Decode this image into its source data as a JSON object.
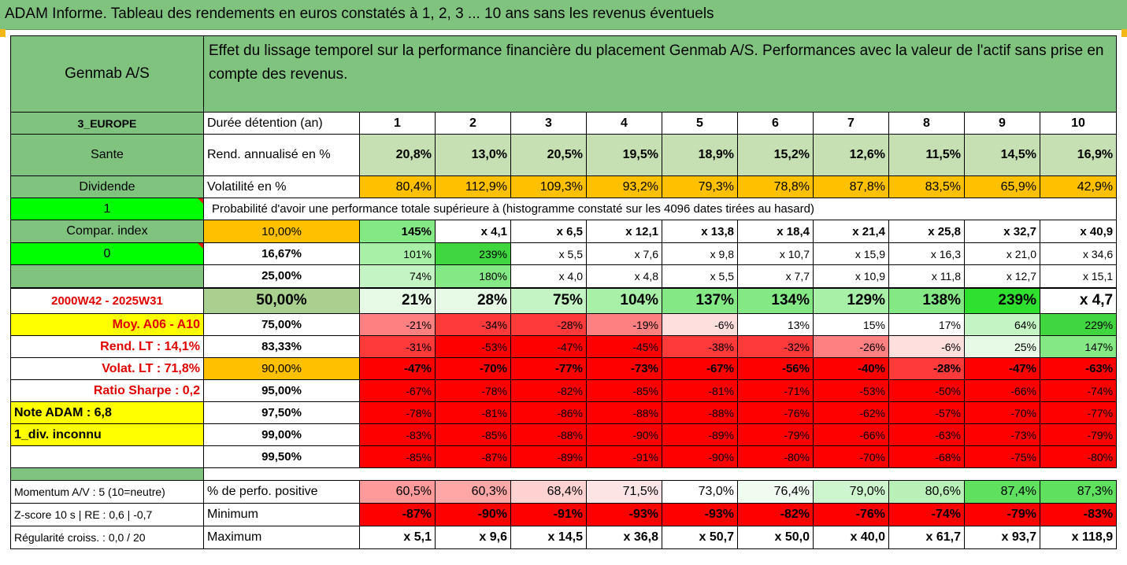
{
  "title": "ADAM Informe. Tableau des rendements en euros constatés à 1, 2, 3 ... 10 ans sans les revenus éventuels",
  "colors": {
    "green_header": "#80c37f",
    "bright_green": "#00ff00",
    "yellow": "#ffff00",
    "orange": "#ffc000",
    "red": "#ff0000"
  },
  "header": {
    "company": "Genmab A/S",
    "description": "Effet du lissage temporel sur la performance financière du placement Genmab A/S. Performances avec la valeur de l'actif sans prise en compte des revenus."
  },
  "left": {
    "region": "3_EUROPE",
    "sector": "Sante",
    "dividend_label": "Dividende",
    "dividend_value": "1",
    "compar_label": "Compar. index",
    "compar_value": "0",
    "period": "2000W42 - 2025W31",
    "moy": "Moy. A06 - A10",
    "rend_lt": "Rend. LT :   14,1%",
    "volat_lt": "Volat. LT :   71,8%",
    "sharpe": "Ratio Sharpe :    0,2",
    "note": "Note ADAM : 6,8",
    "div": "1_div. inconnu",
    "momentum": "Momentum A/V : 5 (10=neutre)",
    "zscore": "Z-score 10 s  | RE : 0,6 | -0,7",
    "regularite": "Régularité croiss. : 0,0 / 20"
  },
  "labels": {
    "duree": "Durée détention (an)",
    "rend": "Rend. annualisé en %",
    "volat": "Volatilité en %",
    "proba": "Probabilité d'avoir une performance totale supérieure à (histogramme constaté sur les 4096 dates tirées au hasard)",
    "perf_pos": "% de perfo. positive",
    "minimum": "Minimum",
    "maximum": "Maximum"
  },
  "years": [
    "1",
    "2",
    "3",
    "4",
    "5",
    "6",
    "7",
    "8",
    "9",
    "10"
  ],
  "rend": [
    "20,8%",
    "13,0%",
    "20,5%",
    "19,5%",
    "18,9%",
    "15,2%",
    "12,6%",
    "11,5%",
    "14,5%",
    "16,9%"
  ],
  "volat": [
    "80,4%",
    "112,9%",
    "109,3%",
    "93,2%",
    "79,3%",
    "78,8%",
    "87,8%",
    "83,5%",
    "65,9%",
    "42,9%"
  ],
  "percentile_rows": [
    {
      "p": "10,00%",
      "v": [
        "145%",
        "x 4,1",
        "x 6,5",
        "x 12,1",
        "x 13,8",
        "x 18,4",
        "x 21,4",
        "x 25,8",
        "x 32,7",
        "x 40,9"
      ]
    },
    {
      "p": "16,67%",
      "v": [
        "101%",
        "239%",
        "x 5,5",
        "x 7,6",
        "x 9,8",
        "x 10,7",
        "x 15,9",
        "x 16,3",
        "x 21,0",
        "x 34,6"
      ]
    },
    {
      "p": "25,00%",
      "v": [
        "74%",
        "180%",
        "x 4,0",
        "x 4,8",
        "x 5,5",
        "x 7,7",
        "x 10,9",
        "x 11,8",
        "x 12,7",
        "x 15,1"
      ]
    },
    {
      "p": "50,00%",
      "v": [
        "21%",
        "28%",
        "75%",
        "104%",
        "137%",
        "134%",
        "129%",
        "138%",
        "239%",
        "x 4,7"
      ]
    },
    {
      "p": "75,00%",
      "v": [
        "-21%",
        "-34%",
        "-28%",
        "-19%",
        "-6%",
        "13%",
        "15%",
        "17%",
        "64%",
        "229%"
      ]
    },
    {
      "p": "83,33%",
      "v": [
        "-31%",
        "-53%",
        "-47%",
        "-45%",
        "-38%",
        "-32%",
        "-26%",
        "-6%",
        "25%",
        "147%"
      ]
    },
    {
      "p": "90,00%",
      "v": [
        "-47%",
        "-70%",
        "-77%",
        "-73%",
        "-67%",
        "-56%",
        "-40%",
        "-28%",
        "-47%",
        "-63%"
      ]
    },
    {
      "p": "95,00%",
      "v": [
        "-67%",
        "-78%",
        "-82%",
        "-85%",
        "-81%",
        "-71%",
        "-53%",
        "-50%",
        "-66%",
        "-74%"
      ]
    },
    {
      "p": "97,50%",
      "v": [
        "-78%",
        "-81%",
        "-86%",
        "-88%",
        "-88%",
        "-76%",
        "-62%",
        "-57%",
        "-70%",
        "-77%"
      ]
    },
    {
      "p": "99,00%",
      "v": [
        "-83%",
        "-85%",
        "-88%",
        "-90%",
        "-89%",
        "-79%",
        "-66%",
        "-63%",
        "-73%",
        "-79%"
      ]
    },
    {
      "p": "99,50%",
      "v": [
        "-85%",
        "-87%",
        "-89%",
        "-91%",
        "-90%",
        "-80%",
        "-70%",
        "-68%",
        "-75%",
        "-80%"
      ]
    }
  ],
  "perf_pos": [
    "60,5%",
    "60,3%",
    "68,4%",
    "71,5%",
    "73,0%",
    "76,4%",
    "79,0%",
    "80,6%",
    "87,4%",
    "87,3%"
  ],
  "minimum": [
    "-87%",
    "-90%",
    "-91%",
    "-93%",
    "-93%",
    "-82%",
    "-76%",
    "-74%",
    "-79%",
    "-83%"
  ],
  "maximum": [
    "x 5,1",
    "x 9,6",
    "x 14,5",
    "x 36,8",
    "x 50,7",
    "x 50,0",
    "x 40,0",
    "x 61,7",
    "x 93,7",
    "x 118,9"
  ]
}
